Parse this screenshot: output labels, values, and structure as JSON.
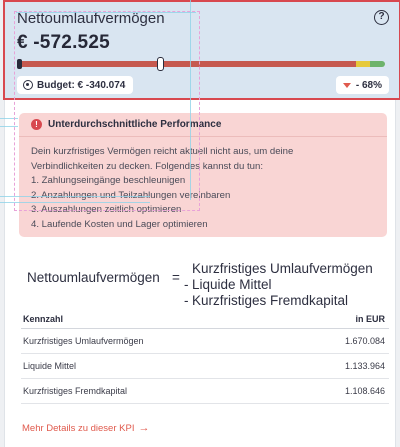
{
  "kpi": {
    "title": "Nettoumlaufvermögen",
    "help_symbol": "?",
    "value": "€ -572.525",
    "progress": {
      "red_fraction": 0.92,
      "yellow_fraction": 0.04,
      "green_fraction": 0.04,
      "marker_fraction": 0.38
    },
    "budget_label": "Budget: € -340.074",
    "delta_label": "- 68%"
  },
  "alert": {
    "title": "Unterdurchschnittliche Performance",
    "icon_symbol": "!",
    "lines": [
      "Dein kurzfristiges Vermögen reicht aktuell nicht aus, um deine",
      "Verbindlichkeiten zu decken. Folgendes kannst du tun:",
      "1. Zahlungseingänge beschleunigen",
      "2. Anzahlungen und Teilzahlungen vereinbaren",
      "3. Auszahlungen zeitlich optimieren",
      "4. Laufende Kosten und Lager optimieren"
    ]
  },
  "formula": {
    "left": "Nettoumlaufvermögen",
    "equals": "=",
    "terms": [
      {
        "op": "",
        "label": "Kurzfristiges Umlaufvermögen"
      },
      {
        "op": "-",
        "label": "Liquide Mittel"
      },
      {
        "op": "-",
        "label": "Kurzfristiges Fremdkapital"
      }
    ]
  },
  "table": {
    "headers": [
      "Kennzahl",
      "in EUR"
    ],
    "rows": [
      [
        "Kurzfristiges Umlaufvermögen",
        "1.670.084"
      ],
      [
        "Liquide Mittel",
        "1.133.964"
      ],
      [
        "Kurzfristiges Fremdkapital",
        "1.108.646"
      ]
    ]
  },
  "more_link": "Mehr Details zu dieser KPI",
  "colors": {
    "accent_red": "#d8484f",
    "header_bg": "#d9e5f1",
    "alert_bg": "#f9d5d4"
  }
}
